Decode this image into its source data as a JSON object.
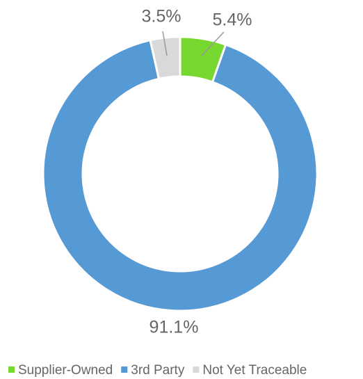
{
  "chart_data": {
    "type": "donut",
    "categories": [
      "Supplier-Owned",
      "3rd Party",
      "Not Yet Traceable"
    ],
    "values": [
      5.4,
      91.1,
      3.5
    ],
    "value_labels": [
      "5.4%",
      "91.1%",
      "3.5%"
    ],
    "colors": [
      "#77d830",
      "#5599d5",
      "#d9d9d9"
    ],
    "legend": "bottom"
  }
}
